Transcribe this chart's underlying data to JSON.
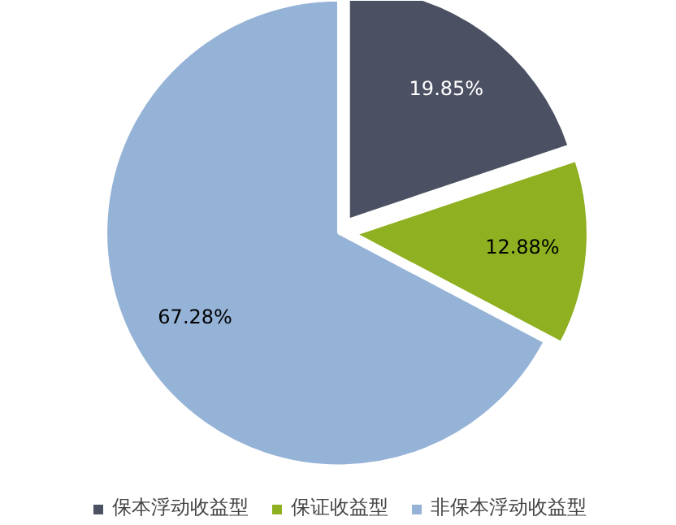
{
  "chart_data": {
    "type": "pie",
    "categories": [
      "保本浮动收益型",
      "保证收益型",
      "非保本浮动收益型"
    ],
    "values": [
      19.85,
      12.88,
      67.28
    ],
    "colors": [
      "#4b5063",
      "#8eb021",
      "#95b3d7"
    ],
    "value_labels": [
      "19.85%",
      "12.88%",
      "67.28%"
    ],
    "legend": "bottom"
  }
}
